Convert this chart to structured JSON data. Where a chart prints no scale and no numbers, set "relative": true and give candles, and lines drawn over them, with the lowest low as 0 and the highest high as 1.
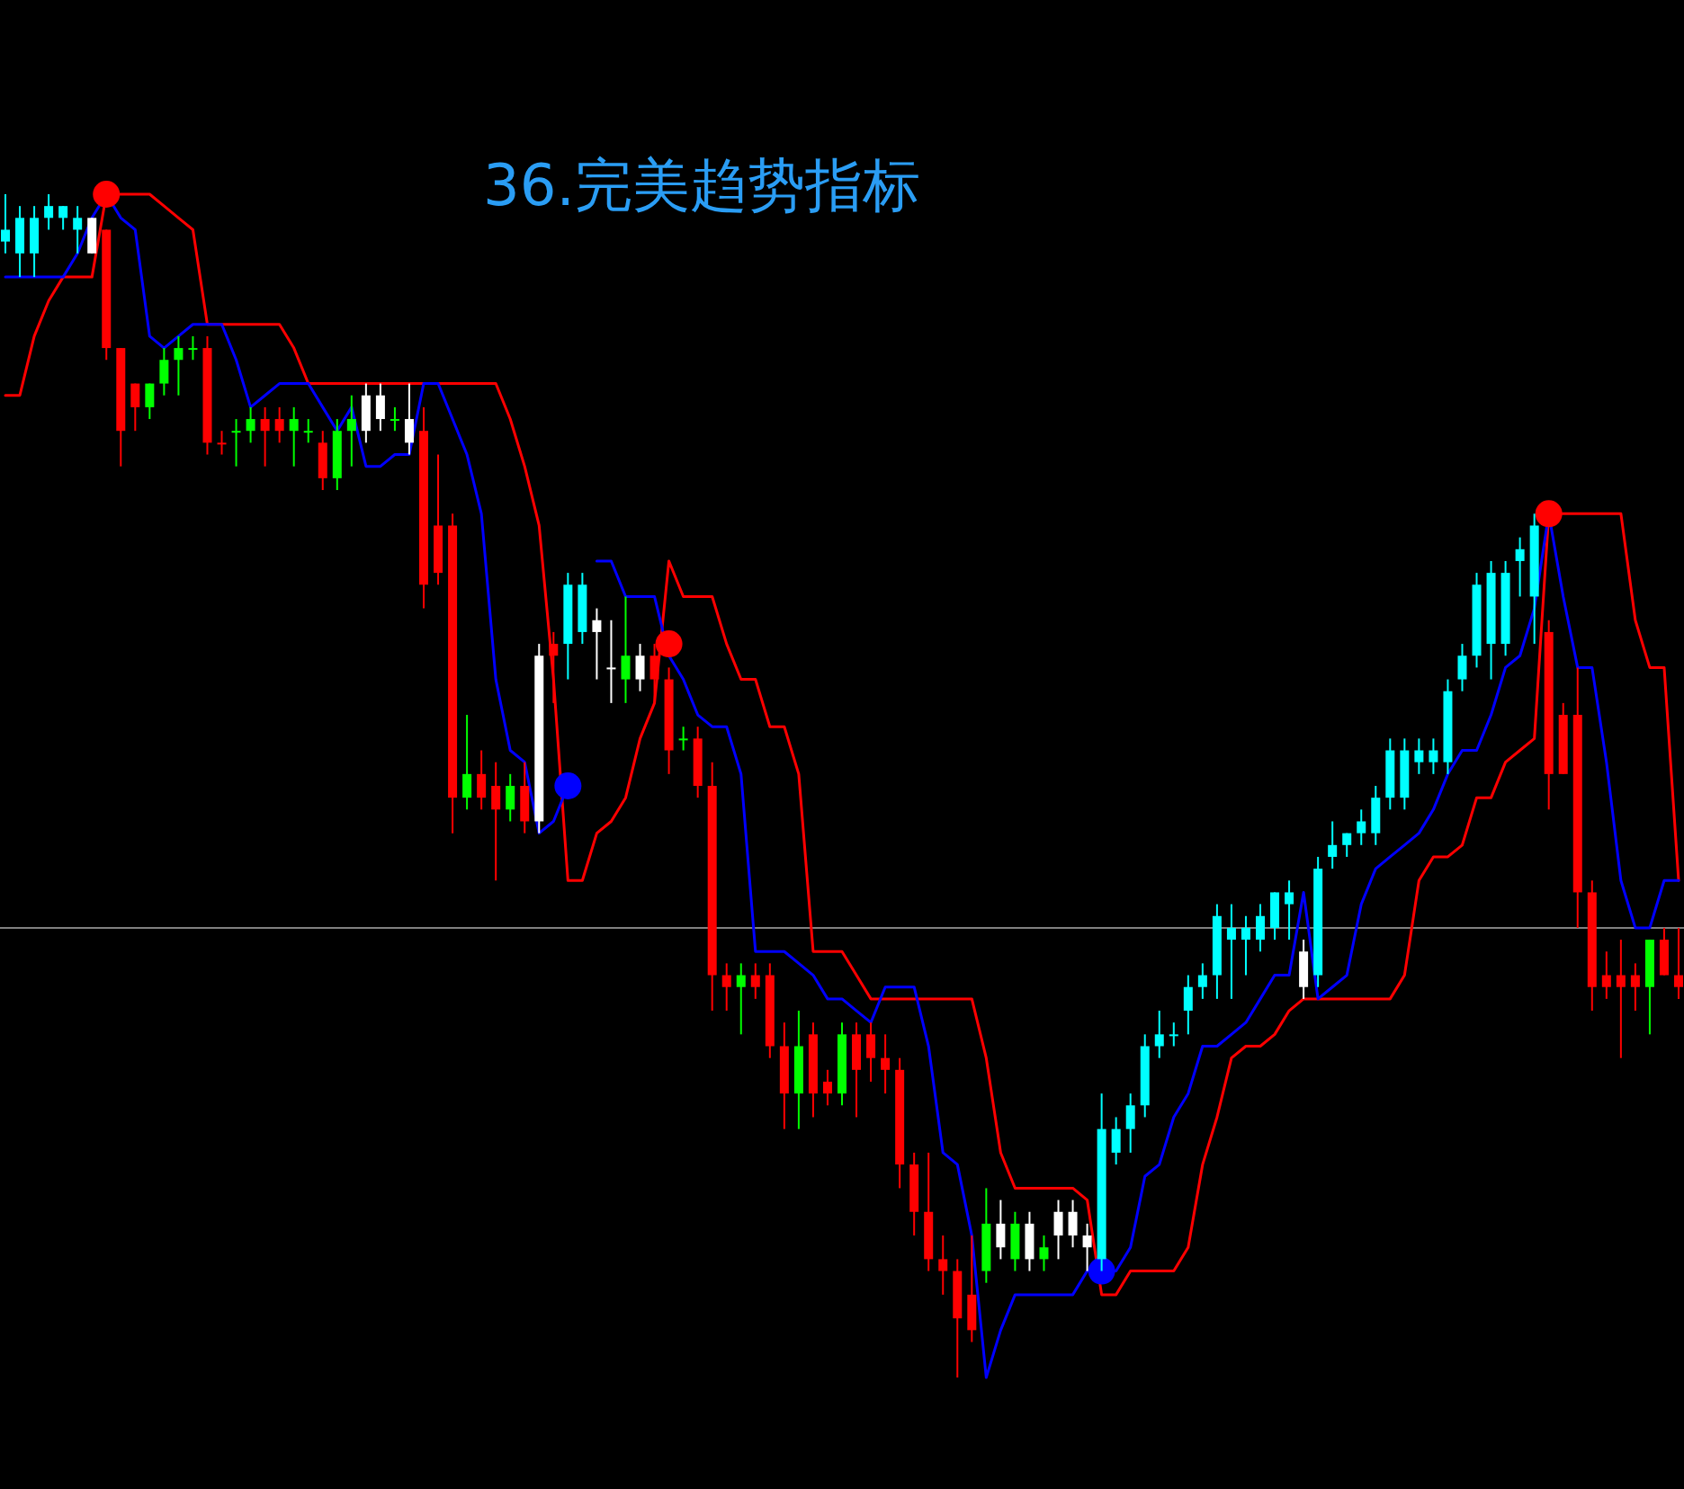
{
  "chart_data": {
    "type": "candlestick",
    "title": "36.完美趋势指标",
    "relative": true,
    "categories": [
      null,
      null,
      null,
      null,
      null,
      null,
      null,
      null,
      null,
      null,
      null,
      null,
      null,
      null,
      null,
      null,
      null,
      null,
      null,
      null,
      null,
      null,
      null,
      null,
      null,
      null,
      null,
      null,
      null,
      null,
      null,
      null,
      null,
      null,
      null,
      null,
      null,
      null,
      null,
      null,
      null,
      null,
      null,
      null,
      null,
      null,
      null,
      null,
      null,
      null,
      null,
      null,
      null,
      null,
      null,
      null,
      null,
      null,
      null,
      null,
      null,
      null,
      null,
      null,
      null,
      null,
      null,
      null,
      null,
      null,
      null,
      null,
      null,
      null,
      null,
      null,
      null,
      null,
      null,
      null,
      null,
      null,
      null,
      null,
      null,
      null,
      null,
      null,
      null,
      null,
      null,
      null,
      null,
      null,
      null,
      null,
      null,
      null,
      null,
      null,
      null,
      null,
      null,
      null,
      null,
      null,
      null,
      null,
      null,
      null,
      null,
      null,
      null,
      null,
      null,
      null,
      null
    ],
    "ohlc": [
      [
        0.96,
        1,
        0.95,
        0.97
      ],
      [
        0.95,
        0.99,
        0.93,
        0.98
      ],
      [
        0.95,
        0.99,
        0.93,
        0.98
      ],
      [
        0.98,
        1,
        0.97,
        0.99
      ],
      [
        0.98,
        0.99,
        0.97,
        0.99
      ],
      [
        0.97,
        0.99,
        0.95,
        0.98
      ],
      [
        0.95,
        0.98,
        0.95,
        0.98
      ],
      [
        0.97,
        0.97,
        0.86,
        0.87
      ],
      [
        0.87,
        0.87,
        0.77,
        0.8
      ],
      [
        0.84,
        0.84,
        0.8,
        0.82
      ],
      [
        0.82,
        0.84,
        0.81,
        0.84
      ],
      [
        0.84,
        0.87,
        0.83,
        0.86
      ],
      [
        0.86,
        0.88,
        0.83,
        0.87
      ],
      [
        0.87,
        0.88,
        0.86,
        0.87
      ],
      [
        0.87,
        0.88,
        0.78,
        0.79
      ],
      [
        0.79,
        0.8,
        0.78,
        0.79
      ],
      [
        0.8,
        0.81,
        0.77,
        0.8
      ],
      [
        0.8,
        0.82,
        0.79,
        0.81
      ],
      [
        0.81,
        0.82,
        0.77,
        0.8
      ],
      [
        0.81,
        0.82,
        0.79,
        0.8
      ],
      [
        0.8,
        0.82,
        0.77,
        0.81
      ],
      [
        0.8,
        0.81,
        0.79,
        0.8
      ],
      [
        0.79,
        0.8,
        0.75,
        0.76
      ],
      [
        0.76,
        0.81,
        0.75,
        0.8
      ],
      [
        0.8,
        0.83,
        0.77,
        0.81
      ],
      [
        0.8,
        0.84,
        0.79,
        0.83
      ],
      [
        0.81,
        0.84,
        0.8,
        0.83
      ],
      [
        0.81,
        0.82,
        0.8,
        0.81
      ],
      [
        0.79,
        0.84,
        0.78,
        0.81
      ],
      [
        0.8,
        0.82,
        0.65,
        0.67
      ],
      [
        0.72,
        0.78,
        0.67,
        0.68
      ],
      [
        0.72,
        0.73,
        0.46,
        0.49
      ],
      [
        0.49,
        0.56,
        0.48,
        0.51
      ],
      [
        0.51,
        0.53,
        0.48,
        0.49
      ],
      [
        0.5,
        0.52,
        0.42,
        0.48
      ],
      [
        0.48,
        0.51,
        0.47,
        0.5
      ],
      [
        0.5,
        0.52,
        0.46,
        0.47
      ],
      [
        0.47,
        0.62,
        0.46,
        0.61
      ],
      [
        0.62,
        0.63,
        0.57,
        0.61
      ],
      [
        0.62,
        0.68,
        0.59,
        0.67
      ],
      [
        0.63,
        0.68,
        0.62,
        0.67
      ],
      [
        0.63,
        0.65,
        0.59,
        0.64
      ],
      [
        0.6,
        0.64,
        0.57,
        0.6
      ],
      [
        0.59,
        0.66,
        0.57,
        0.61
      ],
      [
        0.59,
        0.62,
        0.58,
        0.61
      ],
      [
        0.61,
        0.62,
        0.57,
        0.59
      ],
      [
        0.59,
        0.6,
        0.51,
        0.53
      ],
      [
        0.54,
        0.55,
        0.53,
        0.54
      ],
      [
        0.54,
        0.55,
        0.49,
        0.5
      ],
      [
        0.5,
        0.52,
        0.31,
        0.34
      ],
      [
        0.34,
        0.35,
        0.31,
        0.33
      ],
      [
        0.33,
        0.35,
        0.29,
        0.34
      ],
      [
        0.34,
        0.35,
        0.32,
        0.33
      ],
      [
        0.34,
        0.35,
        0.27,
        0.28
      ],
      [
        0.28,
        0.3,
        0.21,
        0.24
      ],
      [
        0.24,
        0.31,
        0.21,
        0.28
      ],
      [
        0.29,
        0.3,
        0.22,
        0.24
      ],
      [
        0.25,
        0.26,
        0.23,
        0.24
      ],
      [
        0.24,
        0.3,
        0.23,
        0.29
      ],
      [
        0.29,
        0.3,
        0.22,
        0.26
      ],
      [
        0.29,
        0.3,
        0.25,
        0.27
      ],
      [
        0.27,
        0.29,
        0.24,
        0.26
      ],
      [
        0.26,
        0.27,
        0.16,
        0.18
      ],
      [
        0.18,
        0.19,
        0.12,
        0.14
      ],
      [
        0.14,
        0.19,
        0.09,
        0.1
      ],
      [
        0.1,
        0.12,
        0.07,
        0.09
      ],
      [
        0.09,
        0.1,
        0,
        0.05
      ],
      [
        0.07,
        0.12,
        0.03,
        0.04
      ],
      [
        0.09,
        0.16,
        0.08,
        0.13
      ],
      [
        0.11,
        0.15,
        0.1,
        0.13
      ],
      [
        0.1,
        0.14,
        0.09,
        0.13
      ],
      [
        0.1,
        0.14,
        0.09,
        0.13
      ],
      [
        0.1,
        0.12,
        0.09,
        0.11
      ],
      [
        0.12,
        0.15,
        0.1,
        0.14
      ],
      [
        0.12,
        0.15,
        0.11,
        0.14
      ],
      [
        0.11,
        0.13,
        0.09,
        0.12
      ],
      [
        0.1,
        0.24,
        0.09,
        0.21
      ],
      [
        0.19,
        0.22,
        0.18,
        0.21
      ],
      [
        0.21,
        0.24,
        0.19,
        0.23
      ],
      [
        0.23,
        0.29,
        0.22,
        0.28
      ],
      [
        0.28,
        0.31,
        0.27,
        0.29
      ],
      [
        0.29,
        0.3,
        0.28,
        0.29
      ],
      [
        0.31,
        0.34,
        0.29,
        0.33
      ],
      [
        0.33,
        0.35,
        0.32,
        0.34
      ],
      [
        0.34,
        0.4,
        0.32,
        0.39
      ],
      [
        0.37,
        0.4,
        0.32,
        0.38
      ],
      [
        0.37,
        0.39,
        0.34,
        0.38
      ],
      [
        0.37,
        0.4,
        0.36,
        0.39
      ],
      [
        0.38,
        0.41,
        0.37,
        0.41
      ],
      [
        0.4,
        0.42,
        0.37,
        0.41
      ],
      [
        0.33,
        0.37,
        0.32,
        0.36
      ],
      [
        0.34,
        0.44,
        0.33,
        0.43
      ],
      [
        0.44,
        0.47,
        0.43,
        0.45
      ],
      [
        0.45,
        0.46,
        0.44,
        0.46
      ],
      [
        0.46,
        0.48,
        0.45,
        0.47
      ],
      [
        0.46,
        0.5,
        0.45,
        0.49
      ],
      [
        0.49,
        0.54,
        0.48,
        0.53
      ],
      [
        0.49,
        0.54,
        0.48,
        0.53
      ],
      [
        0.52,
        0.54,
        0.51,
        0.53
      ],
      [
        0.52,
        0.54,
        0.51,
        0.53
      ],
      [
        0.52,
        0.59,
        0.51,
        0.58
      ],
      [
        0.59,
        0.62,
        0.58,
        0.61
      ],
      [
        0.61,
        0.68,
        0.6,
        0.67
      ],
      [
        0.62,
        0.69,
        0.59,
        0.68
      ],
      [
        0.62,
        0.69,
        0.61,
        0.68
      ],
      [
        0.69,
        0.71,
        0.66,
        0.7
      ],
      [
        0.66,
        0.73,
        0.62,
        0.72
      ],
      [
        0.63,
        0.64,
        0.48,
        0.51
      ],
      [
        0.56,
        0.57,
        0.51,
        0.51
      ],
      [
        0.56,
        0.6,
        0.38,
        0.41
      ],
      [
        0.41,
        0.42,
        0.31,
        0.33
      ],
      [
        0.34,
        0.36,
        0.32,
        0.33
      ],
      [
        0.34,
        0.37,
        0.27,
        0.33
      ],
      [
        0.34,
        0.35,
        0.31,
        0.33
      ],
      [
        0.33,
        0.37,
        0.29,
        0.37
      ],
      [
        0.37,
        0.38,
        0.34,
        0.34
      ],
      [
        0.34,
        0.38,
        0.32,
        0.33
      ]
    ],
    "colors": [
      "#00ffff",
      "#00ffff",
      "#00ffff",
      "#00ffff",
      "#00ffff",
      "#00ffff",
      "#ffffff",
      "#ff0000",
      "#ff0000",
      "#ff0000",
      "#00ff00",
      "#00ff00",
      "#00ff00",
      "#00ff00",
      "#ff0000",
      "#ff0000",
      "#00ff00",
      "#00ff00",
      "#ff0000",
      "#ff0000",
      "#00ff00",
      "#00ff00",
      "#ff0000",
      "#00ff00",
      "#00ff00",
      "#ffffff",
      "#ffffff",
      "#00ff00",
      "#ffffff",
      "#ff0000",
      "#ff0000",
      "#ff0000",
      "#00ff00",
      "#ff0000",
      "#ff0000",
      "#00ff00",
      "#ff0000",
      "#ffffff",
      "#ff0000",
      "#00ffff",
      "#00ffff",
      "#ffffff",
      "#ffffff",
      "#00ff00",
      "#ffffff",
      "#ff0000",
      "#ff0000",
      "#00ff00",
      "#ff0000",
      "#ff0000",
      "#ff0000",
      "#00ff00",
      "#ff0000",
      "#ff0000",
      "#ff0000",
      "#00ff00",
      "#ff0000",
      "#ff0000",
      "#00ff00",
      "#ff0000",
      "#ff0000",
      "#ff0000",
      "#ff0000",
      "#ff0000",
      "#ff0000",
      "#ff0000",
      "#ff0000",
      "#ff0000",
      "#00ff00",
      "#ffffff",
      "#00ff00",
      "#ffffff",
      "#00ff00",
      "#ffffff",
      "#ffffff",
      "#ffffff",
      "#00ffff",
      "#00ffff",
      "#00ffff",
      "#00ffff",
      "#00ffff",
      "#00ffff",
      "#00ffff",
      "#00ffff",
      "#00ffff",
      "#00ffff",
      "#00ffff",
      "#00ffff",
      "#00ffff",
      "#00ffff",
      "#ffffff",
      "#00ffff",
      "#00ffff",
      "#00ffff",
      "#00ffff",
      "#00ffff",
      "#00ffff",
      "#00ffff",
      "#00ffff",
      "#00ffff",
      "#00ffff",
      "#00ffff",
      "#00ffff",
      "#00ffff",
      "#00ffff",
      "#00ffff",
      "#00ffff",
      "#ff0000",
      "#ff0000",
      "#ff0000",
      "#ff0000",
      "#ff0000",
      "#ff0000",
      "#ff0000",
      "#00ff00",
      "#ff0000",
      "#ff0000"
    ],
    "series": [
      {
        "type": "line",
        "color": "#ff0000",
        "values": [
          0.83,
          0.83,
          0.88,
          0.91,
          0.93,
          0.93,
          0.93,
          1.0,
          1.0,
          1.0,
          1.0,
          0.99,
          0.98,
          0.97,
          0.89,
          0.89,
          0.89,
          0.89,
          0.89,
          0.89,
          0.87,
          0.84,
          0.84,
          0.84,
          0.84,
          0.84,
          0.84,
          0.84,
          0.84,
          0.84,
          0.84,
          0.84,
          0.84,
          0.84,
          0.84,
          0.81,
          0.77,
          0.72,
          0.59,
          0.42,
          0.42,
          0.46,
          0.47,
          0.49,
          0.54,
          0.57,
          0.69,
          0.66,
          0.66,
          0.66,
          0.62,
          0.59,
          0.59,
          0.55,
          0.55,
          0.51,
          0.36,
          0.36,
          0.36,
          0.34,
          0.32,
          0.32,
          0.32,
          0.32,
          0.32,
          0.32,
          0.32,
          0.32,
          0.27,
          0.19,
          0.16,
          0.16,
          0.16,
          0.16,
          0.16,
          0.15,
          0.07,
          0.07,
          0.09,
          0.09,
          0.09,
          0.09,
          0.11,
          0.18,
          0.22,
          0.27,
          0.28,
          0.28,
          0.29,
          0.31,
          0.32,
          0.32,
          0.32,
          0.32,
          0.32,
          0.32,
          0.32,
          0.34,
          0.42,
          0.44,
          0.44,
          0.45,
          0.49,
          0.49,
          0.52,
          0.53,
          0.54,
          0.73,
          0.73,
          0.73,
          0.73,
          0.73,
          0.73,
          0.64,
          0.6,
          0.6,
          0.42
        ]
      },
      {
        "type": "line",
        "color": "#0000ff",
        "values": [
          0.93,
          0.93,
          0.93,
          0.93,
          0.93,
          0.95,
          0.98,
          1.0,
          0.98,
          0.97,
          0.88,
          0.87,
          0.88,
          0.89,
          0.89,
          0.89,
          0.86,
          0.82,
          0.83,
          0.84,
          0.84,
          0.84,
          0.82,
          0.8,
          0.82,
          0.77,
          0.77,
          0.78,
          0.78,
          0.84,
          0.84,
          0.81,
          0.78,
          0.73,
          0.59,
          0.53,
          0.52,
          0.46,
          0.47,
          0.5,
          null,
          0.69,
          0.69,
          0.66,
          0.66,
          0.66,
          0.61,
          0.59,
          0.56,
          0.55,
          0.55,
          0.51,
          0.36,
          0.36,
          0.36,
          0.35,
          0.34,
          0.32,
          0.32,
          0.31,
          0.3,
          0.33,
          0.33,
          0.33,
          0.28,
          0.19,
          0.18,
          0.12,
          0.0,
          0.04,
          0.07,
          0.07,
          0.07,
          0.07,
          0.07,
          0.09,
          0.09,
          0.09,
          0.11,
          0.17,
          0.18,
          0.22,
          0.24,
          0.28,
          0.28,
          0.29,
          0.3,
          0.32,
          0.34,
          0.34,
          0.41,
          0.32,
          0.33,
          0.34,
          0.4,
          0.43,
          0.44,
          0.45,
          0.46,
          0.48,
          0.51,
          0.53,
          0.53,
          0.56,
          0.6,
          0.61,
          0.65,
          0.73,
          0.66,
          0.6,
          0.6,
          0.52,
          0.42,
          0.38,
          0.38,
          0.42,
          0.42
        ]
      },
      {
        "type": "scatter",
        "marker": "circle",
        "color": "#ff0000",
        "values": [
          null,
          null,
          null,
          null,
          null,
          null,
          null,
          1.0,
          null,
          null,
          null,
          null,
          null,
          null,
          null,
          null,
          null,
          null,
          null,
          null,
          null,
          null,
          null,
          null,
          null,
          null,
          null,
          null,
          null,
          null,
          null,
          null,
          null,
          null,
          null,
          null,
          null,
          null,
          null,
          null,
          null,
          null,
          null,
          null,
          null,
          null,
          0.62,
          null,
          null,
          null,
          null,
          null,
          null,
          null,
          null,
          null,
          null,
          null,
          null,
          null,
          null,
          null,
          null,
          null,
          null,
          null,
          null,
          null,
          null,
          null,
          null,
          null,
          null,
          null,
          null,
          null,
          null,
          null,
          null,
          null,
          null,
          null,
          null,
          null,
          null,
          null,
          null,
          null,
          null,
          null,
          null,
          null,
          null,
          null,
          null,
          null,
          null,
          null,
          null,
          null,
          null,
          null,
          null,
          null,
          null,
          null,
          null,
          0.73,
          null,
          null,
          null,
          null,
          null,
          null,
          null,
          null,
          null
        ]
      },
      {
        "type": "scatter",
        "marker": "circle",
        "color": "#0000ff",
        "values": [
          null,
          null,
          null,
          null,
          null,
          null,
          null,
          null,
          null,
          null,
          null,
          null,
          null,
          null,
          null,
          null,
          null,
          null,
          null,
          null,
          null,
          null,
          null,
          null,
          null,
          null,
          null,
          null,
          null,
          null,
          null,
          null,
          null,
          null,
          null,
          null,
          null,
          null,
          null,
          0.5,
          null,
          null,
          null,
          null,
          null,
          null,
          null,
          null,
          null,
          null,
          null,
          null,
          null,
          null,
          null,
          null,
          null,
          null,
          null,
          null,
          null,
          null,
          null,
          null,
          null,
          null,
          null,
          null,
          null,
          null,
          null,
          null,
          null,
          null,
          null,
          null,
          0.09,
          null,
          null,
          null,
          null,
          null,
          null,
          null,
          null,
          null,
          null,
          null,
          null,
          null,
          null,
          null,
          null,
          null,
          null,
          null,
          null,
          null,
          null,
          null,
          null,
          null,
          null,
          null,
          null,
          null,
          null,
          null,
          null,
          null,
          null,
          null,
          null,
          null,
          null,
          null,
          null
        ]
      }
    ],
    "ref_lines": [
      {
        "axis": "y",
        "value": 0.38,
        "color": "#808080"
      }
    ]
  }
}
